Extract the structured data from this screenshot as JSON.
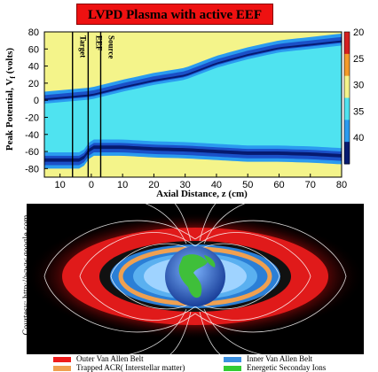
{
  "chart_data": {
    "type": "heatmap",
    "title": "LVPD Plasma with  active EEF",
    "xlabel": "Axial Distance, z (cm)",
    "ylabel": "Peak Potential, V",
    "ylabel_sub": "f",
    "ylabel_unit": "(volts)",
    "xlim": [
      -15,
      80
    ],
    "ylim": [
      -90,
      80
    ],
    "x_ticks": [
      {
        "v": -10,
        "label": "10"
      },
      {
        "v": 0,
        "label": "0"
      },
      {
        "v": 10,
        "label": "10"
      },
      {
        "v": 20,
        "label": "20"
      },
      {
        "v": 30,
        "label": "30"
      },
      {
        "v": 40,
        "label": "40"
      },
      {
        "v": 50,
        "label": "50"
      },
      {
        "v": 60,
        "label": "60"
      },
      {
        "v": 70,
        "label": "70"
      },
      {
        "v": 80,
        "label": "80"
      }
    ],
    "y_ticks": [
      -80,
      -60,
      -40,
      -20,
      0,
      20,
      40,
      60,
      80
    ],
    "colorbar": {
      "ticks": [
        20,
        25,
        30,
        35,
        40
      ],
      "range": [
        20,
        45
      ]
    },
    "region_markers": [
      {
        "label": "Target",
        "x": -6
      },
      {
        "label": "EEF",
        "x": -1
      },
      {
        "label": "Source",
        "x": 3
      }
    ],
    "ridges": [
      {
        "name": "upper",
        "points": [
          [
            -15,
            0
          ],
          [
            0,
            5
          ],
          [
            10,
            14
          ],
          [
            20,
            22
          ],
          [
            30,
            28
          ],
          [
            40,
            42
          ],
          [
            50,
            52
          ],
          [
            60,
            60
          ],
          [
            70,
            64
          ],
          [
            80,
            68
          ]
        ]
      },
      {
        "name": "lower",
        "points": [
          [
            -15,
            -70
          ],
          [
            -3,
            -70
          ],
          [
            0,
            -55
          ],
          [
            10,
            -55
          ],
          [
            20,
            -57
          ],
          [
            30,
            -58
          ],
          [
            40,
            -60
          ],
          [
            50,
            -62
          ],
          [
            60,
            -62
          ],
          [
            70,
            -63
          ],
          [
            80,
            -65
          ]
        ]
      }
    ]
  },
  "belt_figure": {
    "courtesy": "Courtesy: http://www.google.com",
    "legend": [
      {
        "label": "Outer Van Allen Belt",
        "color": "#ee1c1c"
      },
      {
        "label": "Inner Van Allen Belt",
        "color": "#3a8fe0"
      },
      {
        "label": "Trapped ACR( Interstellar matter)",
        "color": "#f0a050"
      },
      {
        "label": "Energetic Seconday Ions",
        "color": "#33cc33"
      }
    ]
  }
}
